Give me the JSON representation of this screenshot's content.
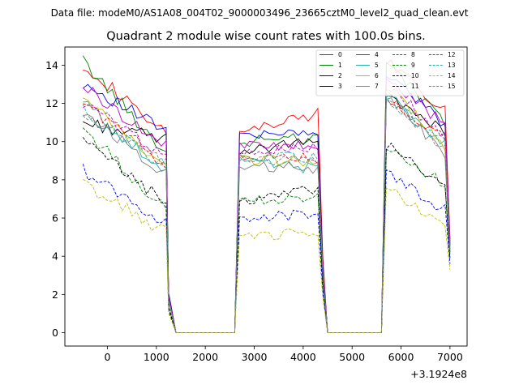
{
  "chart_data": {
    "type": "line",
    "suptitle": "Data file: modeM0/AS1A08_004T02_9000003496_23665cztM0_level2_quad_clean.evt",
    "title": "Quadrant 2 module wise count rates with 100.0s bins.",
    "xlabel": "",
    "ylabel": "",
    "x_offset_label": "+3.1924e8",
    "xlim": [
      -870,
      7350
    ],
    "ylim": [
      -0.7,
      14.95
    ],
    "xticks": [
      0,
      1000,
      2000,
      3000,
      4000,
      5000,
      6000,
      7000
    ],
    "yticks": [
      0,
      2,
      4,
      6,
      8,
      10,
      12,
      14
    ],
    "legend_position": "top-right",
    "segments": [
      {
        "name": "on-1",
        "x_start": -500,
        "x_end": 1200,
        "n": 18
      },
      {
        "name": "off-1",
        "x_start": 1300,
        "x_end": 2600,
        "level": 0
      },
      {
        "name": "on-2",
        "x_start": 2700,
        "x_end": 4300,
        "n": 17
      },
      {
        "name": "off-2",
        "x_start": 4500,
        "x_end": 5600,
        "level": 0
      },
      {
        "name": "on-3",
        "x_start": 5700,
        "x_end": 6900,
        "n": 13
      }
    ],
    "series": [
      {
        "name": "0",
        "color": "#ff0000",
        "dash": "solid",
        "seg1": [
          14.1,
          10.3
        ],
        "seg2": [
          10.4,
          11.5
        ],
        "seg3": [
          14.2,
          11.6
        ],
        "end": 4.9
      },
      {
        "name": "1",
        "color": "#008000",
        "dash": "solid",
        "seg1": [
          14.2,
          9.4
        ],
        "seg2": [
          10.0,
          10.2
        ],
        "seg3": [
          14.2,
          10.9
        ],
        "end": 4.5
      },
      {
        "name": "2",
        "color": "#0000ff",
        "dash": "solid",
        "seg1": [
          13.1,
          10.5
        ],
        "seg2": [
          10.5,
          10.4
        ],
        "seg3": [
          13.5,
          10.9
        ],
        "end": 4.8
      },
      {
        "name": "3",
        "color": "#000000",
        "dash": "solid",
        "seg1": [
          11.0,
          10.1
        ],
        "seg2": [
          9.5,
          10.0
        ],
        "seg3": [
          12.5,
          10.5
        ],
        "end": 4.2
      },
      {
        "name": "4",
        "color": "#bf00bf",
        "dash": "solid",
        "seg1": [
          12.9,
          9.7
        ],
        "seg2": [
          9.9,
          9.7
        ],
        "seg3": [
          13.3,
          10.9
        ],
        "end": 4.6
      },
      {
        "name": "5",
        "color": "#20b2aa",
        "dash": "solid",
        "seg1": [
          12.1,
          8.2
        ],
        "seg2": [
          8.9,
          8.6
        ],
        "seg3": [
          12.6,
          9.8
        ],
        "end": 4.4
      },
      {
        "name": "6",
        "color": "#bfbf00",
        "dash": "solid",
        "seg1": [
          12.2,
          8.6
        ],
        "seg2": [
          9.0,
          9.0
        ],
        "seg3": [
          13.0,
          9.8
        ],
        "end": 4.3
      },
      {
        "name": "7",
        "color": "#808080",
        "dash": "solid",
        "seg1": [
          11.6,
          8.3
        ],
        "seg2": [
          8.7,
          8.6
        ],
        "seg3": [
          12.4,
          9.4
        ],
        "end": 4.1
      },
      {
        "name": "8",
        "color": "#ff0000",
        "dash": "dashed",
        "seg1": [
          12.1,
          8.8
        ],
        "seg2": [
          9.2,
          9.1
        ],
        "seg3": [
          12.2,
          10.1
        ],
        "end": 4.6
      },
      {
        "name": "9",
        "color": "#008000",
        "dash": "dashed",
        "seg1": [
          10.7,
          6.4
        ],
        "seg2": [
          6.9,
          7.2
        ],
        "seg3": [
          9.8,
          7.7
        ],
        "end": 3.9
      },
      {
        "name": "10",
        "color": "#0000ff",
        "dash": "dashed",
        "seg1": [
          8.5,
          5.7
        ],
        "seg2": [
          5.8,
          6.3
        ],
        "seg3": [
          8.4,
          6.4
        ],
        "end": 3.6
      },
      {
        "name": "11",
        "color": "#000000",
        "dash": "dashed",
        "seg1": [
          10.0,
          6.8
        ],
        "seg2": [
          6.9,
          7.5
        ],
        "seg3": [
          9.8,
          7.8
        ],
        "end": 3.9
      },
      {
        "name": "12",
        "color": "#bf00bf",
        "dash": "dashed",
        "seg1": [
          12.0,
          9.3
        ],
        "seg2": [
          9.6,
          9.6
        ],
        "seg3": [
          13.0,
          10.3
        ],
        "end": 4.6
      },
      {
        "name": "13",
        "color": "#20b2aa",
        "dash": "dashed",
        "seg1": [
          11.6,
          8.7
        ],
        "seg2": [
          9.2,
          9.2
        ],
        "seg3": [
          12.3,
          9.9
        ],
        "end": 4.3
      },
      {
        "name": "14",
        "color": "#bfbf00",
        "dash": "dashed",
        "seg1": [
          7.8,
          5.2
        ],
        "seg2": [
          4.9,
          5.3
        ],
        "seg3": [
          7.6,
          5.7
        ],
        "end": 3.3
      },
      {
        "name": "15",
        "color": "#808080",
        "dash": "dashed",
        "seg1": [
          11.4,
          8.8
        ],
        "seg2": [
          9.1,
          9.0
        ],
        "seg3": [
          12.4,
          9.6
        ],
        "end": 4.2
      }
    ]
  }
}
